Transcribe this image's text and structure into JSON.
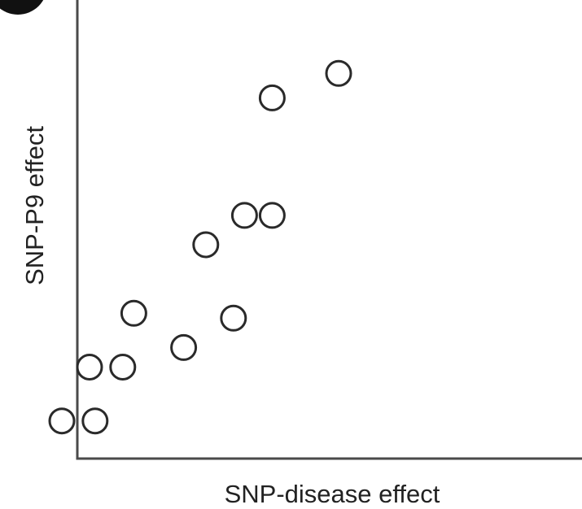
{
  "chart_data": {
    "type": "scatter",
    "title": "",
    "xlabel": "SNP-disease effect",
    "ylabel": "SNP-P9 effect",
    "xlim": [
      0,
      10
    ],
    "ylim": [
      0,
      10
    ],
    "grid": false,
    "legend": "none",
    "series": [
      {
        "x": [
          1.0,
          1.5,
          1.6,
          2.1,
          2.3,
          3.2,
          3.6,
          4.1,
          4.3,
          4.8,
          4.8,
          6.0
        ],
        "y": [
          1.4,
          2.5,
          1.4,
          2.5,
          3.6,
          2.9,
          5.0,
          3.5,
          5.6,
          5.6,
          8.0,
          8.5
        ]
      }
    ],
    "marker": {
      "shape": "open-circle",
      "stroke": "#2a2a2a",
      "fill": "#ffffff"
    },
    "axis_color": "#4a4a4a"
  }
}
